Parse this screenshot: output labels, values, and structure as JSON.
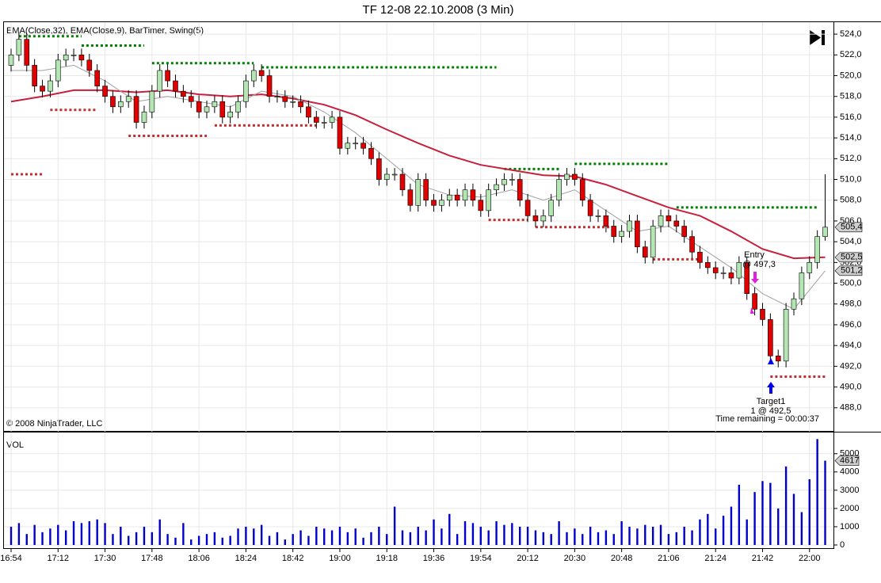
{
  "chart_data": [
    {
      "type": "candlestick",
      "title": "TF 12-08  22.10.2008 (3 Min)",
      "subtitle": "EMA(Close,32), EMA(Close,9), BarTimer, Swing(5)",
      "copyright": "© 2008 NinjaTrader, LLC",
      "categories": [
        "16:54",
        null,
        null,
        null,
        null,
        null,
        "17:12",
        null,
        null,
        null,
        null,
        null,
        "17:30",
        null,
        null,
        null,
        null,
        null,
        "17:48",
        null,
        null,
        null,
        null,
        null,
        "18:06",
        null,
        null,
        null,
        null,
        null,
        "18:24",
        null,
        null,
        null,
        null,
        null,
        "18:42",
        null,
        null,
        null,
        null,
        null,
        "19:00",
        null,
        null,
        null,
        null,
        null,
        "19:18",
        null,
        null,
        null,
        null,
        null,
        "19:36",
        null,
        null,
        null,
        null,
        null,
        "19:54",
        null,
        null,
        null,
        null,
        null,
        "20:12",
        null,
        null,
        null,
        null,
        null,
        "20:30",
        null,
        null,
        null,
        null,
        null,
        "20:48",
        null,
        null,
        null,
        null,
        null,
        "21:06",
        null,
        null,
        null,
        null,
        null,
        "21:24",
        null,
        null,
        null,
        null,
        null,
        "21:42",
        null,
        null,
        null,
        null,
        null,
        "22:00",
        null,
        null
      ],
      "open": [
        521,
        522,
        523.5,
        521,
        519,
        518.5,
        519.5,
        521.5,
        522,
        522,
        521.5,
        520.5,
        519,
        518,
        517,
        517.5,
        518,
        515.5,
        516.5,
        518.5,
        520.5,
        519.5,
        518.5,
        518,
        517.5,
        516.5,
        517,
        517.5,
        516,
        516.5,
        517.5,
        519.5,
        520.5,
        520,
        518,
        518,
        517.5,
        517.5,
        517,
        516,
        515.5,
        515.5,
        516,
        513,
        513.5,
        513.5,
        513,
        512,
        510,
        510.5,
        510.5,
        509,
        507.5,
        510,
        508,
        507.5,
        508,
        508.5,
        508,
        509,
        508,
        507,
        509,
        509.5,
        510,
        510,
        508,
        506.5,
        506,
        506.5,
        508,
        510,
        510.5,
        510,
        508,
        506.5,
        506.5,
        505.5,
        504.5,
        505,
        506,
        503.5,
        502.5,
        505.5,
        506.5,
        506,
        505.5,
        504.5,
        503,
        502,
        501.5,
        501,
        501,
        500.5,
        502,
        499,
        497.5,
        496.5,
        493,
        492.5,
        497.5,
        498.5,
        501,
        502,
        504.5
      ],
      "high": [
        522.6,
        524.1,
        524.1,
        521.6,
        519.6,
        520.1,
        522.1,
        522.6,
        522.6,
        522.6,
        522.1,
        521.1,
        519.6,
        518.6,
        518.1,
        518.6,
        518.6,
        517.1,
        519.1,
        521.1,
        521.1,
        520.1,
        519.1,
        518.6,
        518.1,
        517.6,
        518.1,
        518.1,
        517.1,
        518.1,
        520.1,
        521.1,
        521.1,
        520.6,
        518.6,
        518.6,
        518.1,
        518.1,
        517.6,
        516.6,
        516.1,
        516.6,
        516.6,
        514.1,
        514.1,
        514.1,
        513.6,
        512.6,
        511.1,
        511.1,
        511.1,
        509.6,
        510.6,
        510.6,
        508.6,
        508.6,
        509.1,
        509.1,
        509.6,
        509.6,
        508.6,
        509.6,
        510.1,
        510.6,
        510.6,
        510.6,
        508.6,
        507.1,
        507.1,
        508.6,
        510.6,
        511.1,
        511.1,
        510.6,
        508.6,
        507.1,
        507.1,
        506.1,
        505.6,
        506.6,
        506.6,
        504.1,
        506.1,
        507.1,
        507.1,
        506.6,
        506.1,
        505.1,
        503.6,
        502.6,
        502.1,
        501.6,
        501.6,
        502.6,
        502.6,
        499.6,
        498.1,
        497.1,
        493.6,
        498.1,
        499.1,
        501.6,
        502.6,
        505.1,
        510.5
      ],
      "low": [
        520.4,
        521.4,
        520.4,
        518.4,
        517.9,
        517.9,
        518.9,
        520.9,
        521.4,
        520.9,
        519.9,
        518.4,
        517.4,
        516.4,
        516.4,
        516.9,
        514.9,
        514.9,
        515.9,
        517.9,
        518.9,
        517.9,
        517.4,
        516.9,
        515.9,
        515.9,
        516.4,
        515.4,
        515.4,
        515.9,
        516.9,
        518.9,
        519.4,
        517.4,
        517.4,
        516.9,
        516.9,
        516.4,
        515.4,
        514.9,
        514.9,
        514.9,
        512.4,
        512.4,
        512.9,
        512.4,
        511.4,
        509.4,
        509.4,
        509.9,
        508.4,
        506.9,
        506.9,
        507.4,
        506.9,
        506.9,
        507.4,
        507.4,
        507.4,
        507.4,
        506.4,
        506.4,
        508.4,
        508.9,
        509.4,
        507.4,
        505.9,
        505.4,
        505.4,
        505.9,
        507.4,
        509.4,
        509.4,
        507.4,
        505.9,
        505.9,
        504.9,
        503.9,
        503.9,
        504.4,
        502.9,
        501.9,
        501.9,
        504.9,
        505.4,
        504.9,
        503.9,
        502.4,
        501.4,
        500.9,
        500.4,
        500.4,
        499.9,
        499.9,
        498.4,
        496.9,
        495.9,
        492.4,
        491.9,
        491.9,
        496.9,
        497.9,
        500.4,
        501.4,
        504.1
      ],
      "close": [
        522,
        523.5,
        521,
        519,
        518.5,
        519.5,
        521.5,
        522,
        522,
        521.5,
        520.5,
        519,
        518,
        517,
        517.5,
        518,
        515.5,
        516.5,
        518.5,
        520.5,
        519.5,
        518.5,
        518,
        517.5,
        516.5,
        517,
        517.5,
        516,
        516.5,
        517.5,
        519.5,
        520.5,
        520,
        518,
        518,
        517.5,
        517.5,
        517,
        516,
        515.5,
        515.5,
        516,
        513,
        513.5,
        513.5,
        513,
        512,
        510,
        510.5,
        510.5,
        509,
        507.5,
        510,
        508,
        507.5,
        508,
        508.5,
        508,
        509,
        508,
        507,
        509,
        509.5,
        510,
        510,
        508,
        506.5,
        506,
        506.5,
        508,
        510,
        510.5,
        510,
        508,
        506.5,
        506.5,
        505.5,
        504.5,
        505,
        506,
        503.5,
        502.5,
        505.5,
        506.5,
        506,
        505.5,
        504.5,
        503,
        502,
        501.5,
        501,
        501,
        500.5,
        502,
        499,
        497.5,
        496.5,
        493,
        492.5,
        497.5,
        498.5,
        501,
        502,
        504.5,
        505.4
      ],
      "up_color": "#b4e6b4",
      "down_color": "#e00000",
      "lines": [
        {
          "color": "#c8203c",
          "x": [
            0,
            4,
            8,
            12,
            16,
            20,
            24,
            28,
            32,
            36,
            40,
            44,
            48,
            52,
            56,
            60,
            64,
            68,
            72,
            76,
            80,
            84,
            88,
            92,
            96,
            100,
            104
          ],
          "values": [
            517.5,
            518.0,
            518.6,
            518.6,
            518.4,
            518.6,
            518.2,
            518.0,
            518.2,
            517.8,
            517.2,
            516.2,
            514.8,
            513.5,
            512.3,
            511.4,
            510.9,
            510.4,
            510.3,
            509.5,
            508.4,
            507.3,
            506.5,
            505.0,
            503.3,
            502.4,
            502.5
          ]
        },
        {
          "color": "#a0a0a0",
          "x": [
            0,
            4,
            8,
            12,
            16,
            20,
            24,
            28,
            32,
            36,
            40,
            44,
            48,
            52,
            56,
            60,
            64,
            68,
            72,
            76,
            80,
            84,
            88,
            92,
            96,
            100,
            104
          ],
          "values": [
            520.5,
            520.5,
            521.0,
            519.5,
            517.5,
            518.0,
            517.5,
            517.0,
            518.5,
            518.0,
            516.5,
            514.5,
            512.0,
            509.5,
            508.5,
            508.3,
            509.0,
            508.0,
            509.0,
            507.0,
            505.0,
            505.5,
            503.5,
            501.5,
            499.0,
            497.5,
            501.2
          ]
        }
      ],
      "swing_high": {
        "color": "#008000",
        "segments": [
          {
            "x": [
              1,
              9
            ],
            "value": 523.8
          },
          {
            "x": [
              9,
              17
            ],
            "value": 522.9
          },
          {
            "x": [
              18,
              31
            ],
            "value": 521.2
          },
          {
            "x": [
              32,
              62
            ],
            "value": 520.8
          },
          {
            "x": [
              63,
              70
            ],
            "value": 511.0
          },
          {
            "x": [
              72,
              84
            ],
            "value": 511.5
          },
          {
            "x": [
              85,
              103
            ],
            "value": 507.3
          }
        ]
      },
      "swing_low": {
        "color": "#c03030",
        "segments": [
          {
            "x": [
              0,
              4
            ],
            "value": 510.5
          },
          {
            "x": [
              5,
              11
            ],
            "value": 516.7
          },
          {
            "x": [
              15,
              25
            ],
            "value": 514.2
          },
          {
            "x": [
              26,
              39
            ],
            "value": 515.2
          },
          {
            "x": [
              61,
              66
            ],
            "value": 506.1
          },
          {
            "x": [
              67,
              77
            ],
            "value": 505.4
          },
          {
            "x": [
              82,
              88
            ],
            "value": 502.3
          },
          {
            "x": [
              97,
              104
            ],
            "value": 491.0
          }
        ]
      },
      "entry_label": "Entry",
      "entry_detail": "@ 497,3",
      "target_label": "Target1",
      "target_detail": "1 @ 492,5",
      "timer": "Time remaining = 00:00:37",
      "price_tags": [
        {
          "value": 505.4,
          "label": "505,4"
        },
        {
          "value": 502.5,
          "label": "502,5"
        },
        {
          "value": 501.2,
          "label": "501,2"
        }
      ],
      "ylim": [
        486,
        525
      ],
      "yticks": [
        {
          "value": 488,
          "label": "488,0"
        },
        {
          "value": 490,
          "label": "490,0"
        },
        {
          "value": 492,
          "label": "492,0"
        },
        {
          "value": 494,
          "label": "494,0"
        },
        {
          "value": 496,
          "label": "496,0"
        },
        {
          "value": 498,
          "label": "498,0"
        },
        {
          "value": 500,
          "label": "500,0"
        },
        {
          "value": 502,
          "label": "502,0"
        },
        {
          "value": 504,
          "label": "504,0"
        },
        {
          "value": 506,
          "label": "506,0"
        },
        {
          "value": 508,
          "label": "508,0"
        },
        {
          "value": 510,
          "label": "510,0"
        },
        {
          "value": 512,
          "label": "512,0"
        },
        {
          "value": 514,
          "label": "514,0"
        },
        {
          "value": 516,
          "label": "516,0"
        },
        {
          "value": 518,
          "label": "518,0"
        },
        {
          "value": 520,
          "label": "520,0"
        },
        {
          "value": 522,
          "label": "522,0"
        },
        {
          "value": 524,
          "label": "524,0"
        }
      ],
      "grid": true
    },
    {
      "type": "bar",
      "title": "VOL",
      "color": "#0000cc",
      "values": [
        1000,
        1200,
        600,
        1100,
        700,
        900,
        1100,
        800,
        1300,
        1200,
        1300,
        1400,
        1200,
        600,
        1000,
        500,
        700,
        1000,
        700,
        1400,
        600,
        400,
        1200,
        300,
        500,
        600,
        700,
        400,
        500,
        900,
        1000,
        900,
        1100,
        500,
        700,
        300,
        600,
        800,
        500,
        1000,
        900,
        800,
        1000,
        700,
        900,
        400,
        700,
        1000,
        600,
        2100,
        800,
        700,
        1000,
        800,
        1400,
        900,
        1700,
        600,
        1300,
        1200,
        1000,
        800,
        1300,
        1100,
        1200,
        1000,
        1000,
        800,
        700,
        600,
        1300,
        700,
        900,
        600,
        1000,
        700,
        800,
        600,
        1300,
        1000,
        900,
        1100,
        1000,
        1100,
        600,
        700,
        1000,
        800,
        1400,
        1700,
        900,
        1600,
        2100,
        3300,
        1400,
        2900,
        3500,
        3400,
        2000,
        4300,
        2800,
        1800,
        3600,
        5800,
        4617
      ],
      "last_tag": {
        "value": 4617,
        "label": "4617"
      },
      "ylim": [
        0,
        5900
      ],
      "yticks": [
        0,
        1000,
        2000,
        3000,
        4000,
        5000
      ],
      "grid": true
    }
  ]
}
